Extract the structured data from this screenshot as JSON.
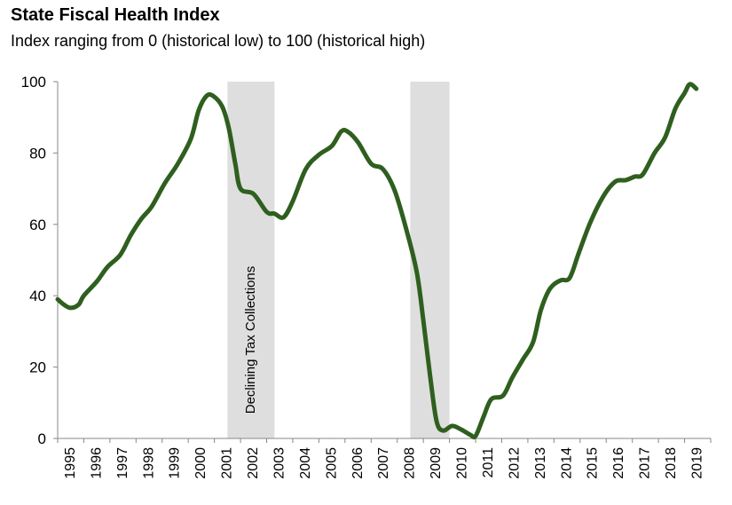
{
  "chart_data": {
    "type": "line",
    "title": "State Fiscal Health Index",
    "subtitle": "Index ranging from 0 (historical low) to 100 (historical high)",
    "xlabel": "",
    "ylabel": "",
    "xlim": [
      1995,
      2020
    ],
    "ylim": [
      0,
      100
    ],
    "yticks": [
      0,
      20,
      40,
      60,
      80,
      100
    ],
    "xtick_labels": [
      "1995",
      "1996",
      "1997",
      "1998",
      "1999",
      "2000",
      "2001",
      "2002",
      "2003",
      "2004",
      "2005",
      "2006",
      "2007",
      "2008",
      "2009",
      "2010",
      "2011",
      "2012",
      "2013",
      "2014",
      "2015",
      "2016",
      "2017",
      "2018",
      "2019"
    ],
    "grid": false,
    "line_color": "#2f5f1f",
    "shaded_regions": [
      {
        "start": 2001.5,
        "end": 2003.3,
        "label": "Declining Tax Collections",
        "color": "#dedede"
      },
      {
        "start": 2008.5,
        "end": 2010.0,
        "label": "",
        "color": "#dedede"
      }
    ],
    "series": [
      {
        "x": [
          1995.0,
          1995.24,
          1995.5,
          1995.8,
          1996.0,
          1996.5,
          1996.9,
          1997.4,
          1997.8,
          1998.2,
          1998.6,
          1999.1,
          1999.6,
          2000.1,
          2000.4,
          2000.7,
          2000.95,
          2001.3,
          2001.55,
          2001.8,
          2002.0,
          2002.5,
          2003.0,
          2003.3,
          2003.65,
          2004.0,
          2004.5,
          2005.0,
          2005.5,
          2005.85,
          2006.1,
          2006.5,
          2007.0,
          2007.45,
          2007.9,
          2008.35,
          2008.75,
          2009.0,
          2009.25,
          2009.5,
          2009.75,
          2010.1,
          2010.45,
          2010.8,
          2011.0,
          2011.3,
          2011.6,
          2012.05,
          2012.4,
          2012.8,
          2013.2,
          2013.5,
          2013.85,
          2014.25,
          2014.6,
          2014.95,
          2015.4,
          2015.9,
          2016.35,
          2016.75,
          2017.1,
          2017.4,
          2017.85,
          2018.25,
          2018.65,
          2019.0,
          2019.2,
          2019.45
        ],
        "y": [
          39,
          37.5,
          36.6,
          37.5,
          40,
          44,
          48,
          51.5,
          57,
          61.5,
          65,
          71.5,
          77,
          84,
          92,
          96,
          96,
          93,
          87,
          77,
          70,
          68.5,
          63.5,
          63,
          62,
          66.5,
          75.5,
          79.5,
          82,
          86,
          86,
          83,
          77,
          75.5,
          69.5,
          58.5,
          46.5,
          33,
          18,
          5,
          2.2,
          3.5,
          2.5,
          1,
          0.7,
          6,
          11,
          12,
          17,
          22,
          27,
          36,
          42,
          44.3,
          45,
          52,
          60.7,
          68,
          72,
          72.4,
          73.4,
          74,
          80,
          84.3,
          92.5,
          96.8,
          99.3,
          98
        ]
      }
    ]
  }
}
